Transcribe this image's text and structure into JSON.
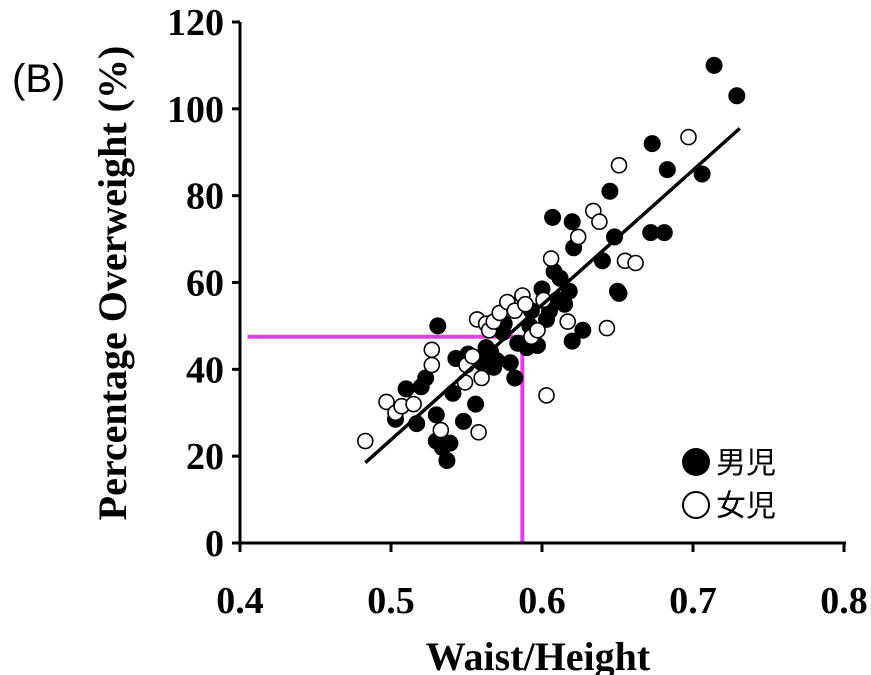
{
  "chart_data": {
    "type": "scatter",
    "panel_label": "(B)",
    "title": "",
    "xlabel": "Waist/Height",
    "ylabel": "Percentage Overweight (%)",
    "xlim": [
      0.4,
      0.8
    ],
    "ylim": [
      0,
      120
    ],
    "x_ticks": [
      "0.4",
      "0.5",
      "0.6",
      "0.7",
      "0.8"
    ],
    "y_ticks": [
      "0",
      "20",
      "40",
      "60",
      "80",
      "100",
      "120"
    ],
    "grid": false,
    "legend_position": "bottom-right",
    "series": [
      {
        "name": "男児",
        "marker": "filled-circle",
        "color": "#000000",
        "points": [
          [
            0.503,
            28.5
          ],
          [
            0.51,
            35.5
          ],
          [
            0.517,
            27.5
          ],
          [
            0.52,
            36.0
          ],
          [
            0.523,
            38.0
          ],
          [
            0.53,
            23.5
          ],
          [
            0.53,
            29.5
          ],
          [
            0.531,
            50.0
          ],
          [
            0.534,
            22.0
          ],
          [
            0.537,
            19.0
          ],
          [
            0.539,
            23.0
          ],
          [
            0.541,
            34.5
          ],
          [
            0.543,
            42.5
          ],
          [
            0.548,
            28.0
          ],
          [
            0.551,
            43.5
          ],
          [
            0.556,
            32.0
          ],
          [
            0.56,
            41.5
          ],
          [
            0.563,
            45.0
          ],
          [
            0.566,
            44.0
          ],
          [
            0.568,
            40.5
          ],
          [
            0.57,
            42.0
          ],
          [
            0.574,
            48.5
          ],
          [
            0.575,
            50.5
          ],
          [
            0.579,
            41.5
          ],
          [
            0.582,
            38.0
          ],
          [
            0.584,
            46.0
          ],
          [
            0.59,
            45.0
          ],
          [
            0.592,
            50.0
          ],
          [
            0.593,
            53.5
          ],
          [
            0.597,
            45.5
          ],
          [
            0.6,
            58.5
          ],
          [
            0.603,
            51.5
          ],
          [
            0.605,
            53.5
          ],
          [
            0.607,
            75.0
          ],
          [
            0.608,
            62.5
          ],
          [
            0.61,
            56.0
          ],
          [
            0.612,
            61.0
          ],
          [
            0.615,
            55.0
          ],
          [
            0.618,
            58.0
          ],
          [
            0.62,
            74.0
          ],
          [
            0.62,
            46.5
          ],
          [
            0.621,
            68.0
          ],
          [
            0.627,
            49.0
          ],
          [
            0.64,
            65.0
          ],
          [
            0.645,
            81.0
          ],
          [
            0.648,
            70.5
          ],
          [
            0.65,
            58.0
          ],
          [
            0.651,
            57.5
          ],
          [
            0.672,
            71.5
          ],
          [
            0.673,
            92.0
          ],
          [
            0.681,
            71.5
          ],
          [
            0.683,
            86.0
          ],
          [
            0.706,
            85.0
          ],
          [
            0.714,
            110.0
          ],
          [
            0.729,
            103.0
          ]
        ]
      },
      {
        "name": "女児",
        "marker": "open-circle",
        "color": "#000000",
        "points": [
          [
            0.483,
            23.5
          ],
          [
            0.497,
            32.5
          ],
          [
            0.503,
            30.0
          ],
          [
            0.507,
            31.5
          ],
          [
            0.515,
            32.0
          ],
          [
            0.527,
            44.5
          ],
          [
            0.527,
            41.0
          ],
          [
            0.533,
            26.0
          ],
          [
            0.549,
            37.0
          ],
          [
            0.55,
            41.0
          ],
          [
            0.554,
            43.0
          ],
          [
            0.557,
            51.5
          ],
          [
            0.558,
            25.5
          ],
          [
            0.56,
            38.0
          ],
          [
            0.563,
            50.5
          ],
          [
            0.565,
            49.0
          ],
          [
            0.568,
            51.0
          ],
          [
            0.572,
            53.0
          ],
          [
            0.577,
            55.5
          ],
          [
            0.582,
            53.5
          ],
          [
            0.587,
            57.0
          ],
          [
            0.589,
            55.0
          ],
          [
            0.593,
            47.5
          ],
          [
            0.597,
            49.0
          ],
          [
            0.601,
            56.0
          ],
          [
            0.603,
            34.0
          ],
          [
            0.606,
            65.5
          ],
          [
            0.617,
            51.0
          ],
          [
            0.624,
            70.5
          ],
          [
            0.634,
            76.5
          ],
          [
            0.638,
            74.0
          ],
          [
            0.643,
            49.5
          ],
          [
            0.651,
            87.0
          ],
          [
            0.655,
            65.0
          ],
          [
            0.662,
            64.5
          ],
          [
            0.697,
            93.5
          ]
        ]
      }
    ],
    "trend_line": {
      "x": [
        0.483,
        0.731
      ],
      "y": [
        18.5,
        95.5
      ],
      "color": "#000000"
    },
    "reference_lines": {
      "color": "#e040e0",
      "horizontal": {
        "y": 47.5,
        "x_from": 0.405,
        "x_to": 0.588
      },
      "vertical": {
        "x": 0.587,
        "y_from": 0,
        "y_to": 47.5
      }
    }
  }
}
